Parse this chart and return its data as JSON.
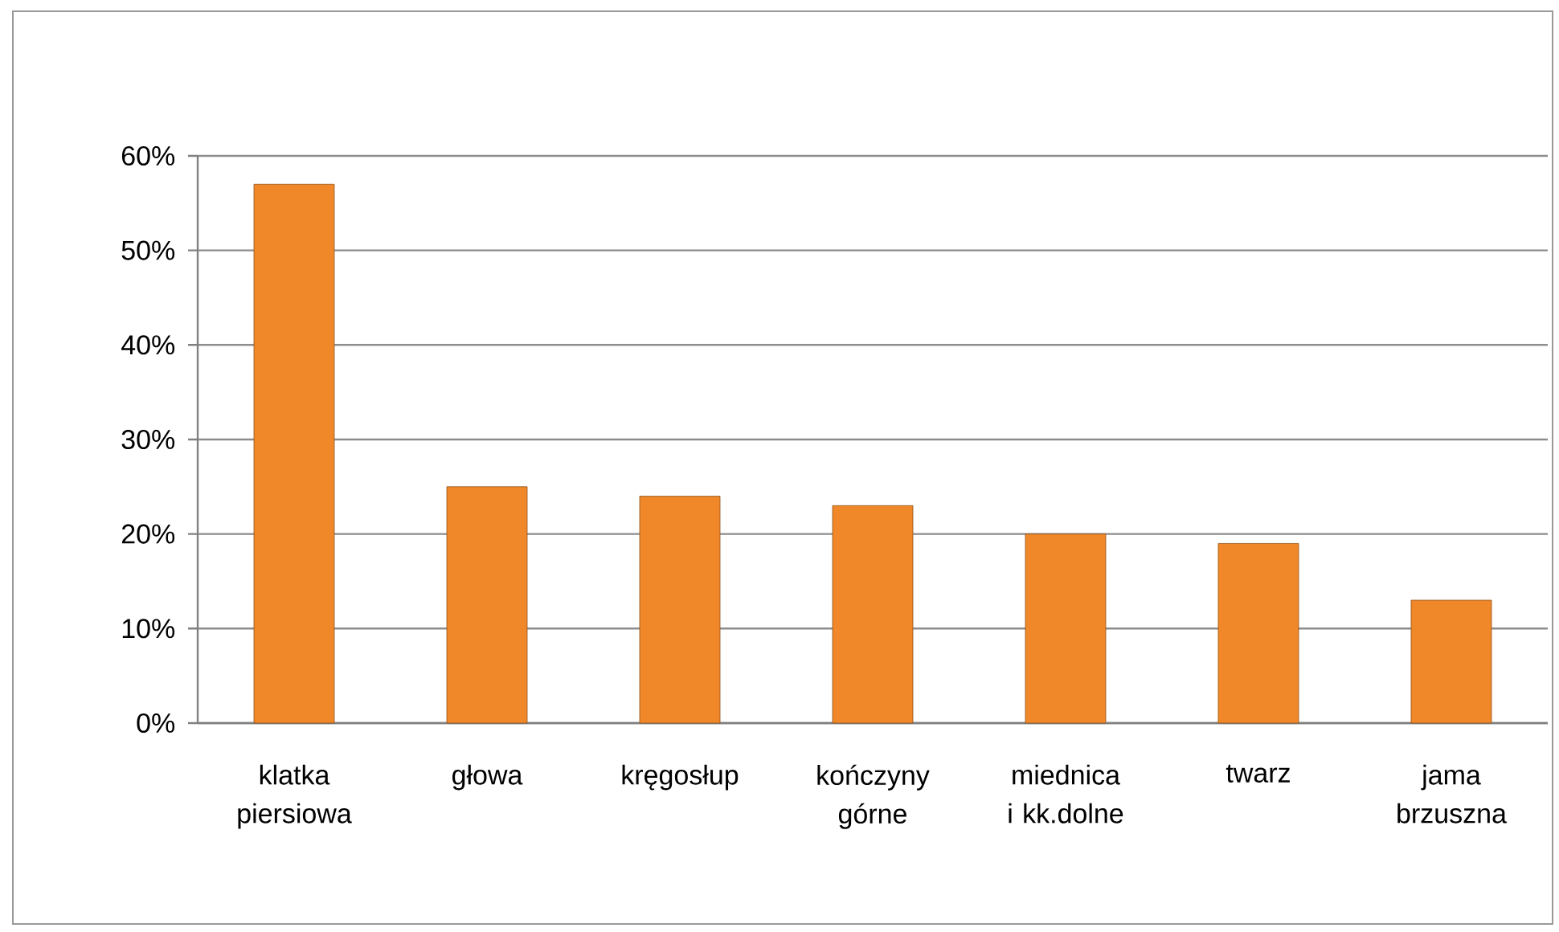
{
  "chart_data": {
    "type": "bar",
    "categories": [
      "klatka piersiowa",
      "głowa",
      "kręgosłup",
      "kończyny górne",
      "miednica i kk.dolne",
      "twarz",
      "jama brzuszna"
    ],
    "values": [
      57,
      25,
      24,
      23,
      20,
      19,
      13
    ],
    "color": "#f0882a",
    "ylim": [
      0,
      60
    ],
    "yticks": [
      {
        "value": 0,
        "label": "0%"
      },
      {
        "value": 10,
        "label": "10%"
      },
      {
        "value": 20,
        "label": "20%"
      },
      {
        "value": 30,
        "label": "30%"
      },
      {
        "value": 40,
        "label": "40%"
      },
      {
        "value": 50,
        "label": "50%"
      },
      {
        "value": 60,
        "label": "60%"
      }
    ],
    "grid": "y"
  }
}
